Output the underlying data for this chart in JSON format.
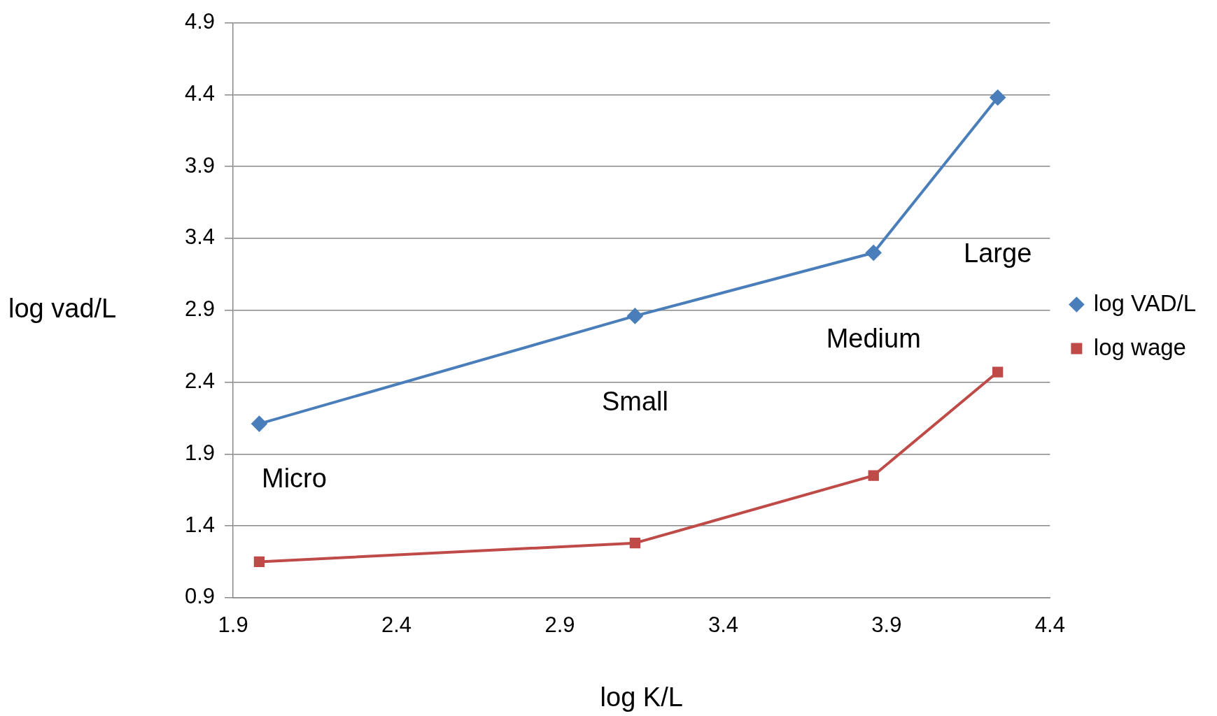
{
  "chart_data": {
    "type": "line",
    "xlabel": "log K/L",
    "ylabel": "log vad/L",
    "xlim": [
      1.9,
      4.4
    ],
    "xticks": [
      1.9,
      2.4,
      2.9,
      3.4,
      3.9,
      4.4
    ],
    "ylim": [
      0.9,
      4.9
    ],
    "yticks": [
      0.9,
      1.4,
      1.9,
      2.4,
      2.9,
      3.4,
      3.9,
      4.4,
      4.9
    ],
    "grid": "y",
    "legend": "right",
    "line_style": "solid",
    "series": [
      {
        "name": "log VAD/L",
        "color": "#4a7ebb",
        "marker": "diamond",
        "x": [
          1.98,
          3.13,
          3.86,
          4.24
        ],
        "values": [
          2.11,
          2.86,
          3.3,
          4.38
        ]
      },
      {
        "name": "log wage",
        "color": "#be4b48",
        "marker": "square",
        "x": [
          1.98,
          3.13,
          3.86,
          4.24
        ],
        "values": [
          1.15,
          1.28,
          1.75,
          2.47
        ]
      }
    ],
    "annotations": [
      "Micro",
      "Small",
      "Medium",
      "Large"
    ]
  }
}
